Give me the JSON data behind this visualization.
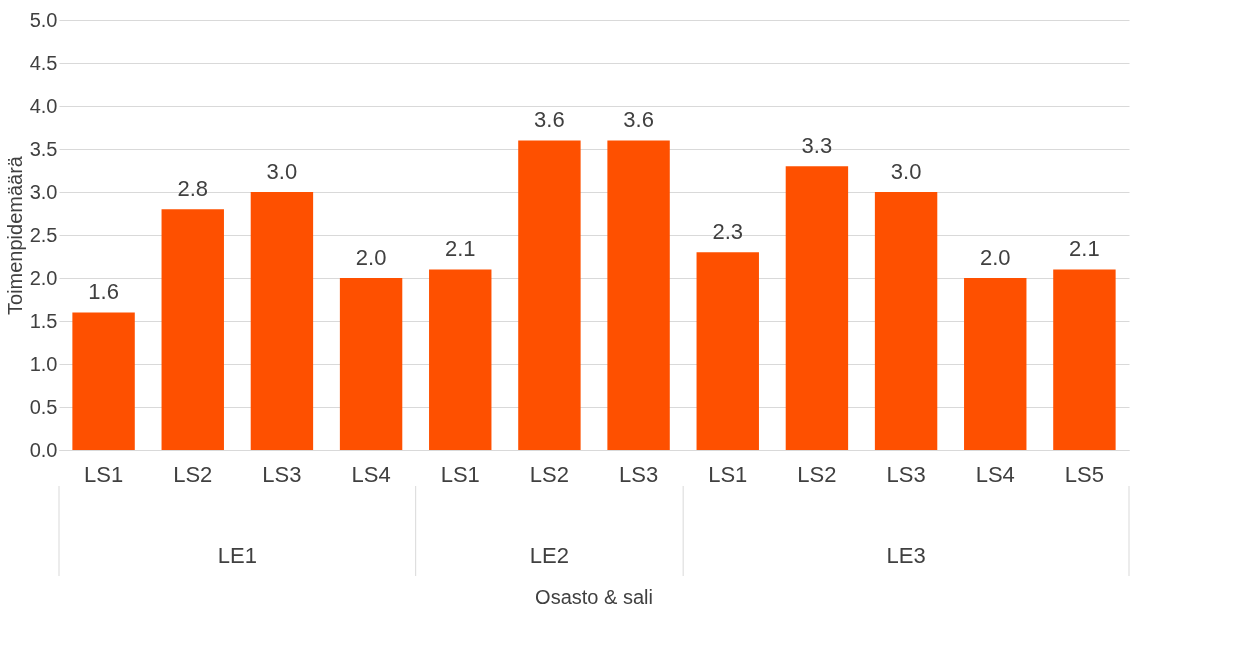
{
  "chart_data": {
    "type": "bar",
    "categories": [
      "LS1",
      "LS2",
      "LS3",
      "LS4",
      "LS1",
      "LS2",
      "LS3",
      "LS1",
      "LS2",
      "LS3",
      "LS4",
      "LS5"
    ],
    "values": [
      1.6,
      2.8,
      3.0,
      2.0,
      2.1,
      3.6,
      3.6,
      2.3,
      3.3,
      3.0,
      2.0,
      2.1
    ],
    "color": "#fe5000",
    "ylabel": "Toimenpidemäärä",
    "annotations": [
      "LE1",
      "LE2",
      "LE3",
      "Osasto & sali"
    ],
    "ylim": [
      0,
      5
    ],
    "yticks": [
      {
        "value": 0,
        "label": "0.0"
      },
      0.5,
      {
        "value": 1,
        "label": "1.0"
      },
      1.5,
      {
        "value": 2,
        "label": "2.0"
      },
      2.5,
      {
        "value": 3,
        "label": "3.0"
      },
      3.5,
      {
        "value": 4,
        "label": "4.0"
      },
      4.5,
      {
        "value": 5,
        "label": "5.0"
      }
    ],
    "grid": "y",
    "value_labels": [
      "1.6",
      "2.8",
      "3.0",
      "2.0",
      "2.1",
      "3.6",
      "3.6",
      "2.3",
      "3.3",
      "3.0",
      "2.0",
      "2.1"
    ]
  }
}
